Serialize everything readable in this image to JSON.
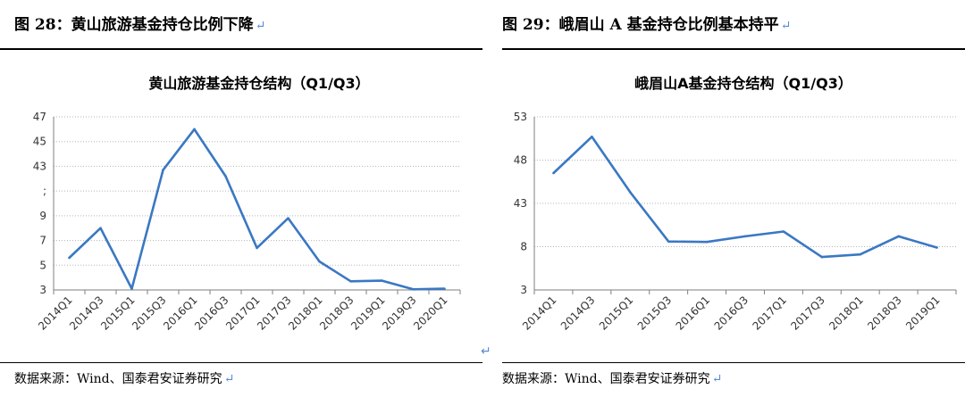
{
  "left": {
    "caption": "图 28：黄山旅游基金持仓比例下降",
    "source": "数据来源：Wind、国泰君安证券研究",
    "chart_data": {
      "type": "line",
      "title": "黄山旅游基金持仓结构（Q1/Q3）",
      "xlabel": "",
      "ylabel": "",
      "ytick_labels": [
        "3",
        "5",
        "7",
        "9",
        ";",
        "43",
        "45",
        "47"
      ],
      "ylim": [
        3,
        17
      ],
      "categories": [
        "2014Q1",
        "2014Q3",
        "2015Q1",
        "2015Q3",
        "2016Q1",
        "2016Q3",
        "2017Q1",
        "2017Q3",
        "2018Q1",
        "2018Q3",
        "2019Q1",
        "2019Q3",
        "2020Q1"
      ],
      "x_points": [
        0,
        1,
        2,
        3,
        4,
        5,
        6,
        7,
        8,
        9,
        10,
        11,
        12
      ],
      "series": [
        {
          "values": [
            5.6,
            8.0,
            3.1,
            12.7,
            16.0,
            12.2,
            6.4,
            8.8,
            5.3,
            3.7,
            3.75,
            3.05,
            3.1
          ]
        }
      ],
      "color": "#3a78c3",
      "grid": "horizontal dotted",
      "legend": "none"
    }
  },
  "right": {
    "caption": "图 29：峨眉山 A 基金持仓比例基本持平",
    "source": "数据来源：Wind、国泰君安证券研究",
    "chart_data": {
      "type": "line",
      "title": "峨眉山A基金持仓结构（Q1/Q3）",
      "xlabel": "",
      "ylabel": "",
      "ytick_labels": [
        "3",
        "8",
        "43",
        "48",
        "53"
      ],
      "ylim": [
        3,
        23
      ],
      "categories": [
        "2014Q1",
        "2014Q3",
        "2015Q1",
        "2015Q3",
        "2016Q1",
        "2016Q3",
        "2017Q1",
        "2017Q3",
        "2018Q1",
        "2018Q3",
        "2019Q1"
      ],
      "x_points": [
        0,
        1,
        2,
        3,
        4,
        5,
        6,
        7,
        8,
        9,
        10
      ],
      "series": [
        {
          "values": [
            16.5,
            20.7,
            14.3,
            8.6,
            8.55,
            9.2,
            9.75,
            6.8,
            7.1,
            9.2,
            7.9
          ]
        }
      ],
      "color": "#3a78c3",
      "grid": "horizontal dotted",
      "legend": "none"
    }
  }
}
